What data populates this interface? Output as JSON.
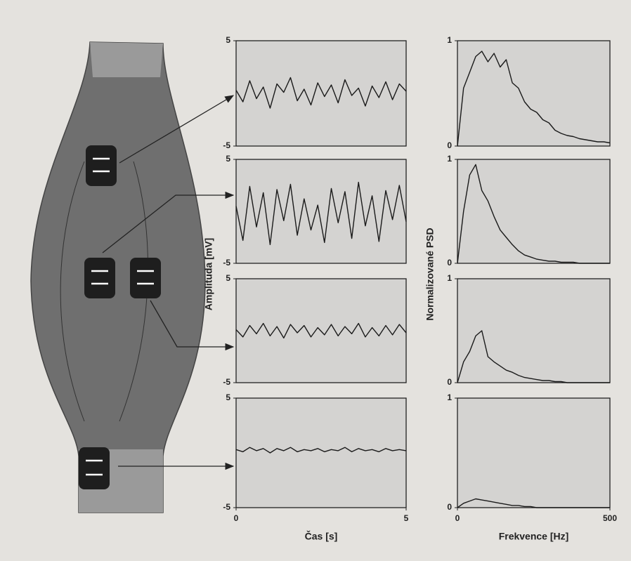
{
  "chart_data": [
    {
      "type": "line",
      "ylabel": "Amplituda [mV]",
      "xlim": [
        0,
        5
      ],
      "ylim": [
        -5,
        5
      ],
      "yticks": [
        -5,
        5
      ],
      "x": [
        0,
        0.2,
        0.4,
        0.6,
        0.8,
        1,
        1.2,
        1.4,
        1.6,
        1.8,
        2,
        2.2,
        2.4,
        2.6,
        2.8,
        3,
        3.2,
        3.4,
        3.6,
        3.8,
        4,
        4.2,
        4.4,
        4.6,
        4.8,
        5
      ],
      "values": [
        0.3,
        -0.8,
        1.2,
        -0.5,
        0.6,
        -1.4,
        0.9,
        0.1,
        1.5,
        -0.7,
        0.4,
        -1.1,
        1.0,
        -0.3,
        0.8,
        -0.9,
        1.3,
        -0.2,
        0.5,
        -1.2,
        0.7,
        -0.4,
        1.1,
        -0.6,
        0.9,
        0.2
      ]
    },
    {
      "type": "line",
      "xlim": [
        0,
        5
      ],
      "ylim": [
        -5,
        5
      ],
      "yticks": [
        -5,
        5
      ],
      "x": [
        0,
        0.2,
        0.4,
        0.6,
        0.8,
        1,
        1.2,
        1.4,
        1.6,
        1.8,
        2,
        2.2,
        2.4,
        2.6,
        2.8,
        3,
        3.2,
        3.4,
        3.6,
        3.8,
        4,
        4.2,
        4.4,
        4.6,
        4.8,
        5
      ],
      "values": [
        0.5,
        -2.8,
        2.4,
        -1.5,
        1.8,
        -3.2,
        2.1,
        -0.9,
        2.6,
        -2.3,
        1.2,
        -1.8,
        0.6,
        -3.0,
        2.2,
        -1.1,
        1.9,
        -2.6,
        2.8,
        -1.4,
        1.5,
        -2.9,
        2.0,
        -0.8,
        2.5,
        -1.0
      ]
    },
    {
      "type": "line",
      "xlim": [
        0,
        5
      ],
      "ylim": [
        -5,
        5
      ],
      "yticks": [
        -5,
        5
      ],
      "x": [
        0,
        0.2,
        0.4,
        0.6,
        0.8,
        1,
        1.2,
        1.4,
        1.6,
        1.8,
        2,
        2.2,
        2.4,
        2.6,
        2.8,
        3,
        3.2,
        3.4,
        3.6,
        3.8,
        4,
        4.2,
        4.4,
        4.6,
        4.8,
        5
      ],
      "values": [
        0.1,
        -0.6,
        0.5,
        -0.3,
        0.7,
        -0.5,
        0.4,
        -0.7,
        0.6,
        -0.2,
        0.5,
        -0.6,
        0.3,
        -0.4,
        0.6,
        -0.5,
        0.4,
        -0.3,
        0.7,
        -0.6,
        0.3,
        -0.5,
        0.5,
        -0.4,
        0.6,
        -0.2
      ]
    },
    {
      "type": "line",
      "xlabel": "Čas [s]",
      "xlim": [
        0,
        5
      ],
      "ylim": [
        -5,
        5
      ],
      "yticks": [
        -5,
        5
      ],
      "xticks": [
        0,
        5
      ],
      "x": [
        0,
        0.2,
        0.4,
        0.6,
        0.8,
        1,
        1.2,
        1.4,
        1.6,
        1.8,
        2,
        2.2,
        2.4,
        2.6,
        2.8,
        3,
        3.2,
        3.4,
        3.6,
        3.8,
        4,
        4.2,
        4.4,
        4.6,
        4.8,
        5
      ],
      "values": [
        0.3,
        0.1,
        0.5,
        0.2,
        0.4,
        0.0,
        0.4,
        0.2,
        0.5,
        0.1,
        0.3,
        0.2,
        0.4,
        0.1,
        0.3,
        0.2,
        0.5,
        0.1,
        0.4,
        0.2,
        0.3,
        0.1,
        0.4,
        0.2,
        0.3,
        0.2
      ]
    },
    {
      "type": "line",
      "ylabel": "Normalizované PSD",
      "xlim": [
        0,
        500
      ],
      "ylim": [
        0,
        1
      ],
      "yticks": [
        0,
        1
      ],
      "x": [
        0,
        20,
        40,
        60,
        80,
        100,
        120,
        140,
        160,
        180,
        200,
        220,
        240,
        260,
        280,
        300,
        320,
        340,
        360,
        380,
        400,
        420,
        440,
        460,
        480,
        500
      ],
      "values": [
        0,
        0.55,
        0.7,
        0.85,
        0.9,
        0.8,
        0.88,
        0.75,
        0.82,
        0.6,
        0.55,
        0.42,
        0.35,
        0.32,
        0.25,
        0.22,
        0.15,
        0.12,
        0.1,
        0.09,
        0.07,
        0.06,
        0.05,
        0.04,
        0.04,
        0.03
      ]
    },
    {
      "type": "line",
      "xlim": [
        0,
        500
      ],
      "ylim": [
        0,
        1
      ],
      "yticks": [
        0,
        1
      ],
      "x": [
        0,
        20,
        40,
        60,
        80,
        100,
        120,
        140,
        160,
        180,
        200,
        220,
        240,
        260,
        280,
        300,
        320,
        340,
        360,
        380,
        400,
        420,
        440,
        460,
        480,
        500
      ],
      "values": [
        0,
        0.5,
        0.85,
        0.95,
        0.7,
        0.6,
        0.45,
        0.32,
        0.25,
        0.18,
        0.12,
        0.08,
        0.06,
        0.04,
        0.03,
        0.02,
        0.02,
        0.01,
        0.01,
        0.01,
        0,
        0,
        0,
        0,
        0,
        0
      ]
    },
    {
      "type": "line",
      "xlim": [
        0,
        500
      ],
      "ylim": [
        0,
        1
      ],
      "yticks": [
        0,
        1
      ],
      "x": [
        0,
        20,
        40,
        60,
        80,
        100,
        120,
        140,
        160,
        180,
        200,
        220,
        240,
        260,
        280,
        300,
        320,
        340,
        360,
        380,
        400,
        420,
        440,
        460,
        480,
        500
      ],
      "values": [
        0,
        0.2,
        0.3,
        0.45,
        0.5,
        0.25,
        0.2,
        0.16,
        0.12,
        0.1,
        0.07,
        0.05,
        0.04,
        0.03,
        0.02,
        0.02,
        0.01,
        0.01,
        0,
        0,
        0,
        0,
        0,
        0,
        0,
        0
      ]
    },
    {
      "type": "line",
      "xlabel": "Frekvence [Hz]",
      "xlim": [
        0,
        500
      ],
      "ylim": [
        0,
        1
      ],
      "yticks": [
        0,
        1
      ],
      "xticks": [
        0,
        500
      ],
      "x": [
        0,
        20,
        40,
        60,
        80,
        100,
        120,
        140,
        160,
        180,
        200,
        220,
        240,
        260,
        280,
        300,
        320,
        340,
        360,
        380,
        400,
        420,
        440,
        460,
        480,
        500
      ],
      "values": [
        0,
        0.04,
        0.06,
        0.08,
        0.07,
        0.06,
        0.05,
        0.04,
        0.03,
        0.02,
        0.02,
        0.01,
        0.01,
        0,
        0,
        0,
        0,
        0,
        0,
        0,
        0,
        0,
        0,
        0,
        0,
        0
      ]
    }
  ]
}
